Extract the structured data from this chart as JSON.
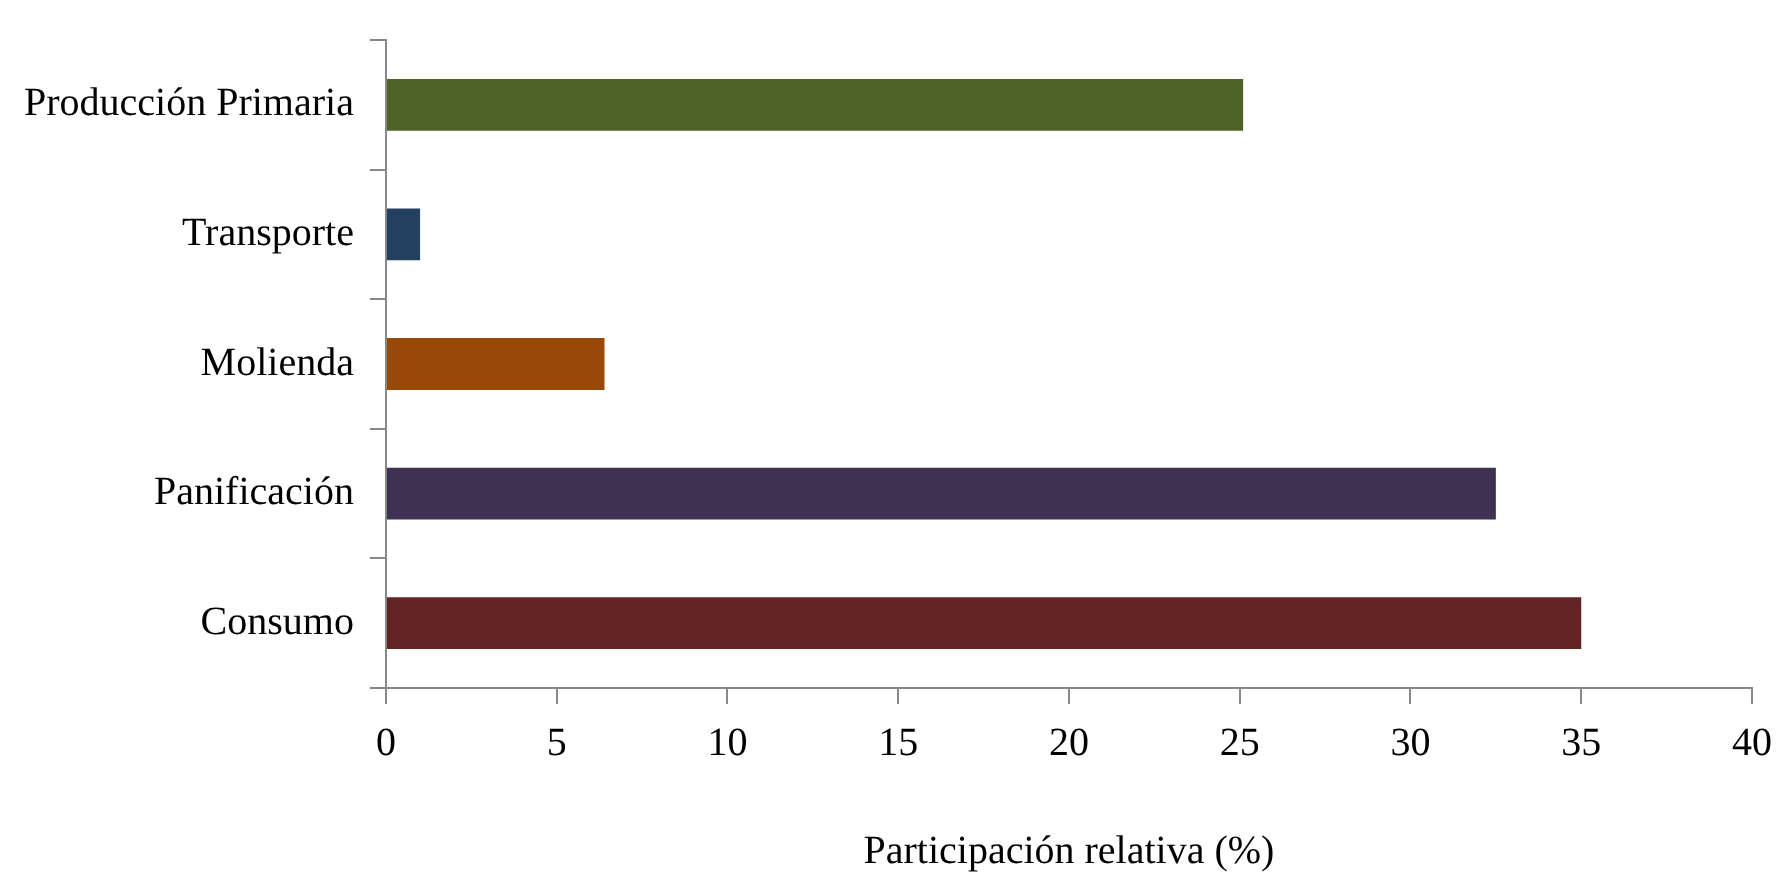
{
  "chart_data": {
    "type": "bar",
    "orientation": "horizontal",
    "xlabel": "Participación relativa (%)",
    "categories": [
      "Producción Primaria",
      "Transporte",
      "Molienda",
      "Panificación",
      "Consumo"
    ],
    "values": [
      25.1,
      1.0,
      6.4,
      32.5,
      35.0
    ],
    "colors": [
      "#4f6228",
      "#244061",
      "#984807",
      "#3f3151",
      "#632523"
    ],
    "xlim": [
      0,
      40
    ],
    "xticks": [
      0,
      5,
      10,
      15,
      20,
      25,
      30,
      35,
      40
    ],
    "grid": false,
    "legend": false
  }
}
